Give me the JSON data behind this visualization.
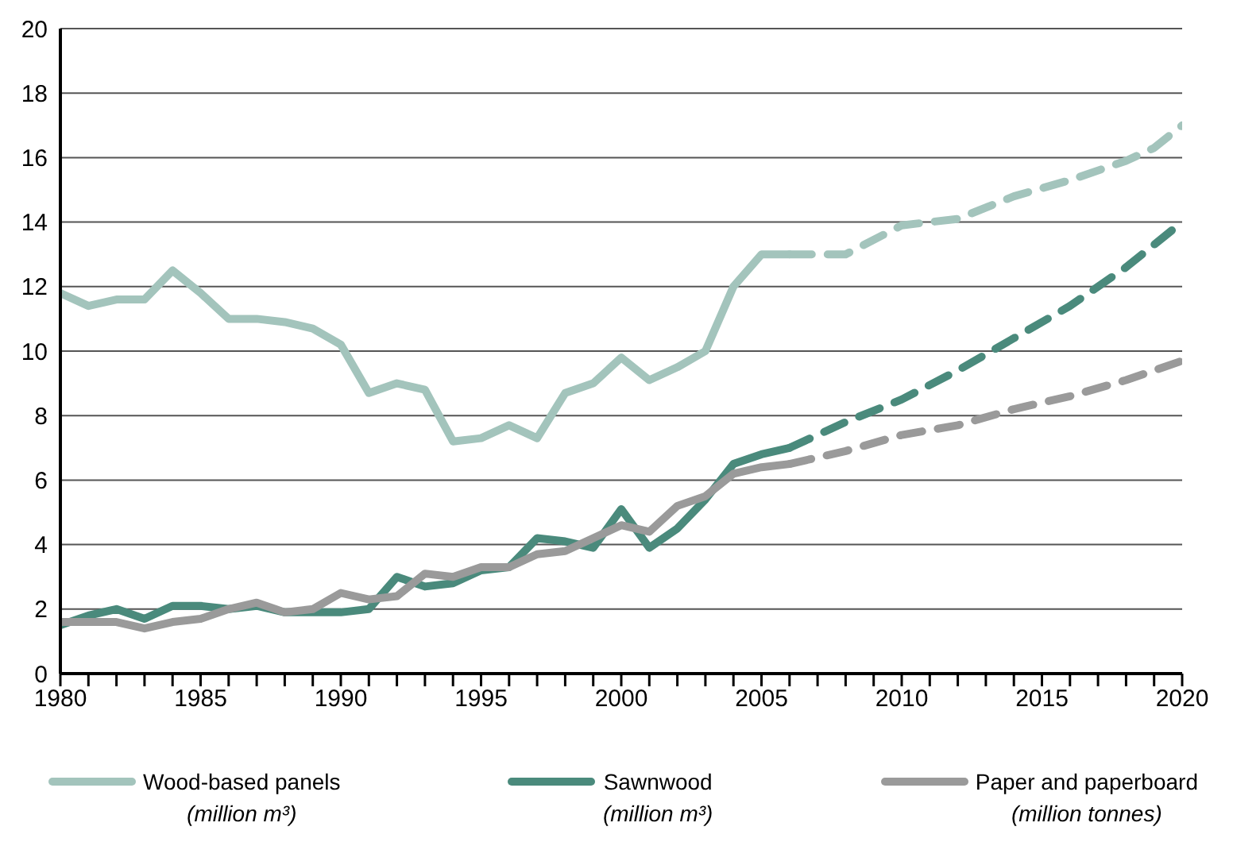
{
  "chart_data": {
    "type": "line",
    "xlim": [
      1980,
      2020
    ],
    "ylim": [
      0,
      20
    ],
    "xticks": [
      1980,
      {
        "value": 1981,
        "label": null
      },
      {
        "value": 1982,
        "label": null
      },
      {
        "value": 1983,
        "label": null
      },
      {
        "value": 1984,
        "label": null
      },
      1985,
      {
        "value": 1986,
        "label": null
      },
      {
        "value": 1987,
        "label": null
      },
      {
        "value": 1988,
        "label": null
      },
      {
        "value": 1989,
        "label": null
      },
      1990,
      {
        "value": 1991,
        "label": null
      },
      {
        "value": 1992,
        "label": null
      },
      {
        "value": 1993,
        "label": null
      },
      {
        "value": 1994,
        "label": null
      },
      1995,
      {
        "value": 1996,
        "label": null
      },
      {
        "value": 1997,
        "label": null
      },
      {
        "value": 1998,
        "label": null
      },
      {
        "value": 1999,
        "label": null
      },
      2000,
      {
        "value": 2001,
        "label": null
      },
      {
        "value": 2002,
        "label": null
      },
      {
        "value": 2003,
        "label": null
      },
      {
        "value": 2004,
        "label": null
      },
      2005,
      {
        "value": 2006,
        "label": null
      },
      {
        "value": 2007,
        "label": null
      },
      {
        "value": 2008,
        "label": null
      },
      {
        "value": 2009,
        "label": null
      },
      2010,
      {
        "value": 2011,
        "label": null
      },
      {
        "value": 2012,
        "label": null
      },
      {
        "value": 2013,
        "label": null
      },
      {
        "value": 2014,
        "label": null
      },
      2015,
      {
        "value": 2016,
        "label": null
      },
      {
        "value": 2017,
        "label": null
      },
      {
        "value": 2018,
        "label": null
      },
      {
        "value": 2019,
        "label": null
      },
      2020
    ],
    "yticks": [
      0,
      2,
      4,
      6,
      8,
      10,
      12,
      14,
      16,
      18,
      20
    ],
    "grid": "y",
    "legend": "bottom",
    "marker": "none",
    "series": [
      {
        "name": "Wood-based panels\n(million m³)",
        "color": "#a3c4bc",
        "line_style": "solid",
        "x": [
          1980,
          1981,
          1982,
          1983,
          1984,
          1985,
          1986,
          1987,
          1988,
          1989,
          1990,
          1991,
          1992,
          1993,
          1994,
          1995,
          1996,
          1997,
          1998,
          1999,
          2000,
          2001,
          2002,
          2003,
          2004,
          2005,
          2006
        ],
        "values": [
          11.8,
          11.4,
          11.6,
          11.6,
          12.5,
          11.8,
          11.0,
          11.0,
          10.9,
          10.7,
          10.2,
          8.7,
          9.0,
          8.8,
          7.2,
          7.3,
          7.7,
          7.3,
          8.7,
          9.0,
          9.8,
          9.1,
          9.5,
          10.0,
          12.0,
          13.0,
          13.0
        ]
      },
      {
        "name": "Sawnwood\n(million m³)",
        "color": "#4a8a7c",
        "line_style": "solid",
        "x": [
          1980,
          1981,
          1982,
          1983,
          1984,
          1985,
          1986,
          1987,
          1988,
          1989,
          1990,
          1991,
          1992,
          1993,
          1994,
          1995,
          1996,
          1997,
          1998,
          1999,
          2000,
          2001,
          2002,
          2003,
          2004,
          2005,
          2006
        ],
        "values": [
          1.5,
          1.8,
          2.0,
          1.7,
          2.1,
          2.1,
          2.0,
          2.1,
          1.9,
          1.9,
          1.9,
          2.0,
          3.0,
          2.7,
          2.8,
          3.2,
          3.3,
          4.2,
          4.1,
          3.9,
          5.1,
          3.9,
          4.5,
          5.4,
          6.5,
          6.8,
          7.0
        ]
      },
      {
        "name": "Paper and paperboard\n(million tonnes)",
        "color": "#9a9a9a",
        "line_style": "solid",
        "x": [
          1980,
          1981,
          1982,
          1983,
          1984,
          1985,
          1986,
          1987,
          1988,
          1989,
          1990,
          1991,
          1992,
          1993,
          1994,
          1995,
          1996,
          1997,
          1998,
          1999,
          2000,
          2001,
          2002,
          2003,
          2004,
          2005,
          2006
        ],
        "values": [
          1.6,
          1.6,
          1.6,
          1.4,
          1.6,
          1.7,
          2.0,
          2.2,
          1.9,
          2.0,
          2.5,
          2.3,
          2.4,
          3.1,
          3.0,
          3.3,
          3.3,
          3.7,
          3.8,
          4.2,
          4.6,
          4.4,
          5.2,
          5.5,
          6.2,
          6.4,
          6.5
        ]
      },
      {
        "color": "#a3c4bc",
        "line_style": "dashed",
        "x": [
          2006,
          2008,
          2010,
          2012,
          2014,
          2016,
          2018,
          2019,
          2020
        ],
        "values": [
          13.0,
          13.0,
          13.9,
          14.1,
          14.8,
          15.3,
          15.9,
          16.3,
          17.0
        ]
      },
      {
        "color": "#4a8a7c",
        "line_style": "dashed",
        "x": [
          2006,
          2008,
          2010,
          2012,
          2014,
          2016,
          2018,
          2020
        ],
        "values": [
          7.0,
          7.8,
          8.5,
          9.4,
          10.4,
          11.4,
          12.6,
          14.0
        ]
      },
      {
        "color": "#9a9a9a",
        "line_style": "dashed",
        "x": [
          2006,
          2008,
          2010,
          2012,
          2014,
          2016,
          2018,
          2020
        ],
        "values": [
          6.5,
          6.9,
          7.4,
          7.7,
          8.2,
          8.6,
          9.1,
          9.7
        ]
      }
    ]
  }
}
